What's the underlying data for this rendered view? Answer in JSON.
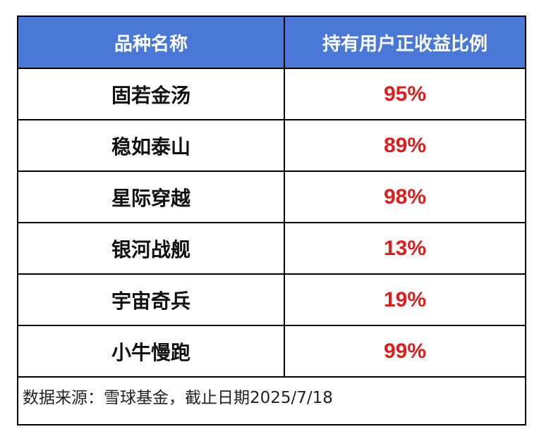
{
  "table": {
    "headers": [
      "品种名称",
      "持有用户正收益比例"
    ],
    "rows": [
      {
        "name": "固若金汤",
        "value": "95%"
      },
      {
        "name": "稳如泰山",
        "value": "89%"
      },
      {
        "name": "星际穿越",
        "value": "98%"
      },
      {
        "name": "银河战舰",
        "value": "13%"
      },
      {
        "name": "宇宙奇兵",
        "value": "19%"
      },
      {
        "name": "小牛慢跑",
        "value": "99%"
      }
    ]
  },
  "footnote": "数据来源：雪球基金，截止日期2025/7/18",
  "colors": {
    "header_bg": "#4a78d6",
    "header_text": "#ffffff",
    "value_text": "#e01c1c",
    "border": "#000000"
  }
}
